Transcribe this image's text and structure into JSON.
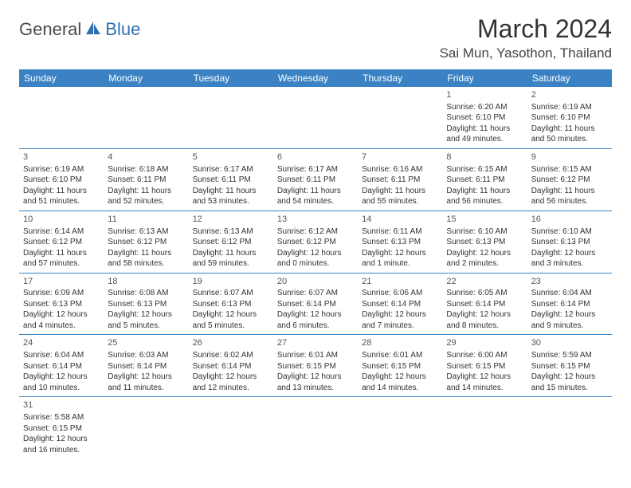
{
  "logo": {
    "part1": "General",
    "part2": "Blue",
    "icon_color": "#2f6fb0"
  },
  "title": "March 2024",
  "location": "Sai Mun, Yasothon, Thailand",
  "colors": {
    "header_bg": "#3b82c4",
    "header_text": "#ffffff",
    "cell_border": "#3b82c4",
    "text": "#333333",
    "logo_gray": "#4a4a4a",
    "logo_blue": "#2f6fb0"
  },
  "typography": {
    "title_fontsize": 32,
    "location_fontsize": 17,
    "weekday_fontsize": 12,
    "cell_fontsize": 10,
    "daynum_fontsize": 11
  },
  "weekdays": [
    "Sunday",
    "Monday",
    "Tuesday",
    "Wednesday",
    "Thursday",
    "Friday",
    "Saturday"
  ],
  "weeks": [
    [
      null,
      null,
      null,
      null,
      null,
      {
        "n": "1",
        "sunrise": "Sunrise: 6:20 AM",
        "sunset": "Sunset: 6:10 PM",
        "daylight": "Daylight: 11 hours and 49 minutes."
      },
      {
        "n": "2",
        "sunrise": "Sunrise: 6:19 AM",
        "sunset": "Sunset: 6:10 PM",
        "daylight": "Daylight: 11 hours and 50 minutes."
      }
    ],
    [
      {
        "n": "3",
        "sunrise": "Sunrise: 6:19 AM",
        "sunset": "Sunset: 6:10 PM",
        "daylight": "Daylight: 11 hours and 51 minutes."
      },
      {
        "n": "4",
        "sunrise": "Sunrise: 6:18 AM",
        "sunset": "Sunset: 6:11 PM",
        "daylight": "Daylight: 11 hours and 52 minutes."
      },
      {
        "n": "5",
        "sunrise": "Sunrise: 6:17 AM",
        "sunset": "Sunset: 6:11 PM",
        "daylight": "Daylight: 11 hours and 53 minutes."
      },
      {
        "n": "6",
        "sunrise": "Sunrise: 6:17 AM",
        "sunset": "Sunset: 6:11 PM",
        "daylight": "Daylight: 11 hours and 54 minutes."
      },
      {
        "n": "7",
        "sunrise": "Sunrise: 6:16 AM",
        "sunset": "Sunset: 6:11 PM",
        "daylight": "Daylight: 11 hours and 55 minutes."
      },
      {
        "n": "8",
        "sunrise": "Sunrise: 6:15 AM",
        "sunset": "Sunset: 6:11 PM",
        "daylight": "Daylight: 11 hours and 56 minutes."
      },
      {
        "n": "9",
        "sunrise": "Sunrise: 6:15 AM",
        "sunset": "Sunset: 6:12 PM",
        "daylight": "Daylight: 11 hours and 56 minutes."
      }
    ],
    [
      {
        "n": "10",
        "sunrise": "Sunrise: 6:14 AM",
        "sunset": "Sunset: 6:12 PM",
        "daylight": "Daylight: 11 hours and 57 minutes."
      },
      {
        "n": "11",
        "sunrise": "Sunrise: 6:13 AM",
        "sunset": "Sunset: 6:12 PM",
        "daylight": "Daylight: 11 hours and 58 minutes."
      },
      {
        "n": "12",
        "sunrise": "Sunrise: 6:13 AM",
        "sunset": "Sunset: 6:12 PM",
        "daylight": "Daylight: 11 hours and 59 minutes."
      },
      {
        "n": "13",
        "sunrise": "Sunrise: 6:12 AM",
        "sunset": "Sunset: 6:12 PM",
        "daylight": "Daylight: 12 hours and 0 minutes."
      },
      {
        "n": "14",
        "sunrise": "Sunrise: 6:11 AM",
        "sunset": "Sunset: 6:13 PM",
        "daylight": "Daylight: 12 hours and 1 minute."
      },
      {
        "n": "15",
        "sunrise": "Sunrise: 6:10 AM",
        "sunset": "Sunset: 6:13 PM",
        "daylight": "Daylight: 12 hours and 2 minutes."
      },
      {
        "n": "16",
        "sunrise": "Sunrise: 6:10 AM",
        "sunset": "Sunset: 6:13 PM",
        "daylight": "Daylight: 12 hours and 3 minutes."
      }
    ],
    [
      {
        "n": "17",
        "sunrise": "Sunrise: 6:09 AM",
        "sunset": "Sunset: 6:13 PM",
        "daylight": "Daylight: 12 hours and 4 minutes."
      },
      {
        "n": "18",
        "sunrise": "Sunrise: 6:08 AM",
        "sunset": "Sunset: 6:13 PM",
        "daylight": "Daylight: 12 hours and 5 minutes."
      },
      {
        "n": "19",
        "sunrise": "Sunrise: 6:07 AM",
        "sunset": "Sunset: 6:13 PM",
        "daylight": "Daylight: 12 hours and 5 minutes."
      },
      {
        "n": "20",
        "sunrise": "Sunrise: 6:07 AM",
        "sunset": "Sunset: 6:14 PM",
        "daylight": "Daylight: 12 hours and 6 minutes."
      },
      {
        "n": "21",
        "sunrise": "Sunrise: 6:06 AM",
        "sunset": "Sunset: 6:14 PM",
        "daylight": "Daylight: 12 hours and 7 minutes."
      },
      {
        "n": "22",
        "sunrise": "Sunrise: 6:05 AM",
        "sunset": "Sunset: 6:14 PM",
        "daylight": "Daylight: 12 hours and 8 minutes."
      },
      {
        "n": "23",
        "sunrise": "Sunrise: 6:04 AM",
        "sunset": "Sunset: 6:14 PM",
        "daylight": "Daylight: 12 hours and 9 minutes."
      }
    ],
    [
      {
        "n": "24",
        "sunrise": "Sunrise: 6:04 AM",
        "sunset": "Sunset: 6:14 PM",
        "daylight": "Daylight: 12 hours and 10 minutes."
      },
      {
        "n": "25",
        "sunrise": "Sunrise: 6:03 AM",
        "sunset": "Sunset: 6:14 PM",
        "daylight": "Daylight: 12 hours and 11 minutes."
      },
      {
        "n": "26",
        "sunrise": "Sunrise: 6:02 AM",
        "sunset": "Sunset: 6:14 PM",
        "daylight": "Daylight: 12 hours and 12 minutes."
      },
      {
        "n": "27",
        "sunrise": "Sunrise: 6:01 AM",
        "sunset": "Sunset: 6:15 PM",
        "daylight": "Daylight: 12 hours and 13 minutes."
      },
      {
        "n": "28",
        "sunrise": "Sunrise: 6:01 AM",
        "sunset": "Sunset: 6:15 PM",
        "daylight": "Daylight: 12 hours and 14 minutes."
      },
      {
        "n": "29",
        "sunrise": "Sunrise: 6:00 AM",
        "sunset": "Sunset: 6:15 PM",
        "daylight": "Daylight: 12 hours and 14 minutes."
      },
      {
        "n": "30",
        "sunrise": "Sunrise: 5:59 AM",
        "sunset": "Sunset: 6:15 PM",
        "daylight": "Daylight: 12 hours and 15 minutes."
      }
    ],
    [
      {
        "n": "31",
        "sunrise": "Sunrise: 5:58 AM",
        "sunset": "Sunset: 6:15 PM",
        "daylight": "Daylight: 12 hours and 16 minutes."
      },
      null,
      null,
      null,
      null,
      null,
      null
    ]
  ]
}
